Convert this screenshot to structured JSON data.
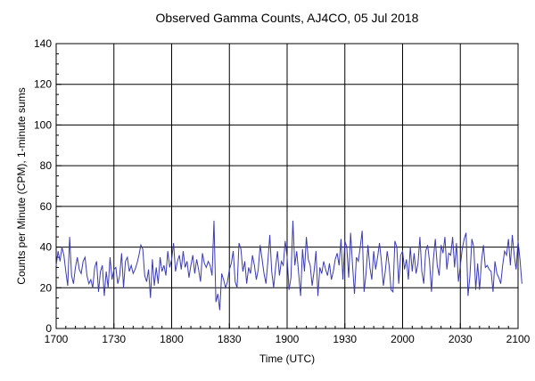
{
  "chart_data": {
    "type": "line",
    "title": "Observed Gamma Counts, AJ4CO, 05 Jul 2018",
    "xlabel": "Time (UTC)",
    "ylabel": "Counts per Minute (CPM), 1-minute sums",
    "ylim": [
      0,
      140
    ],
    "xlim": [
      0,
      240
    ],
    "y_ticks": [
      0,
      20,
      40,
      60,
      80,
      100,
      120,
      140
    ],
    "x_ticks": [
      {
        "minute": 0,
        "label": "1700"
      },
      {
        "minute": 30,
        "label": "1730"
      },
      {
        "minute": 60,
        "label": "1800"
      },
      {
        "minute": 90,
        "label": "1830"
      },
      {
        "minute": 120,
        "label": "1900"
      },
      {
        "minute": 150,
        "label": "1930"
      },
      {
        "minute": 180,
        "label": "2000"
      },
      {
        "minute": 210,
        "label": "2030"
      },
      {
        "minute": 240,
        "label": "2100"
      }
    ],
    "grid": true,
    "line_color": "#3b3bb3",
    "series": [
      {
        "name": "CPM",
        "x_start_minute": 0,
        "x_step_minutes": 1,
        "values": [
          31,
          38,
          33,
          40,
          36,
          28,
          21,
          45,
          26,
          22,
          30,
          35,
          29,
          27,
          33,
          35,
          26,
          22,
          24,
          20,
          30,
          33,
          18,
          28,
          31,
          16,
          28,
          20,
          35,
          24,
          29,
          30,
          22,
          26,
          37,
          20,
          33,
          35,
          28,
          31,
          27,
          29,
          32,
          36,
          41,
          39,
          26,
          23,
          29,
          15,
          34,
          21,
          30,
          22,
          35,
          28,
          31,
          26,
          38,
          30,
          34,
          42,
          28,
          33,
          36,
          29,
          38,
          30,
          33,
          25,
          31,
          36,
          27,
          34,
          29,
          23,
          37,
          32,
          30,
          33,
          31,
          26,
          53,
          13,
          17,
          9,
          27,
          24,
          20,
          23,
          29,
          32,
          38,
          23,
          20,
          42,
          39,
          28,
          33,
          22,
          30,
          27,
          36,
          31,
          24,
          29,
          41,
          34,
          27,
          22,
          33,
          46,
          28,
          20,
          30,
          38,
          26,
          33,
          31,
          43,
          35,
          19,
          25,
          53,
          31,
          38,
          27,
          16,
          39,
          28,
          45,
          34,
          31,
          21,
          28,
          38,
          16,
          30,
          27,
          33,
          29,
          26,
          32,
          24,
          28,
          34,
          37,
          31,
          44,
          24,
          43,
          40,
          25,
          47,
          31,
          17,
          35,
          33,
          40,
          48,
          18,
          27,
          41,
          30,
          24,
          38,
          29,
          35,
          42,
          33,
          21,
          28,
          38,
          31,
          19,
          18,
          43,
          40,
          22,
          36,
          38,
          29,
          34,
          24,
          40,
          28,
          37,
          27,
          32,
          45,
          28,
          22,
          38,
          41,
          33,
          18,
          34,
          44,
          31,
          26,
          41,
          37,
          45,
          29,
          37,
          36,
          45,
          30,
          42,
          23,
          31,
          39,
          44,
          47,
          16,
          26,
          44,
          40,
          19,
          32,
          19,
          33,
          41,
          30,
          31,
          29,
          28,
          18,
          33,
          27,
          25,
          22,
          31,
          38,
          36,
          44,
          31,
          46,
          36,
          29,
          43,
          34,
          22
        ]
      }
    ]
  }
}
